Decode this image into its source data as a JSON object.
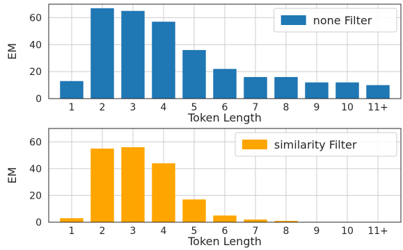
{
  "chart_data": [
    {
      "type": "bar",
      "categories": [
        "1",
        "2",
        "3",
        "4",
        "5",
        "6",
        "7",
        "8",
        "9",
        "10",
        "11+"
      ],
      "series": [
        {
          "name": "none Filter",
          "values": [
            13,
            67,
            65,
            57,
            36,
            22,
            16,
            16,
            12,
            12,
            10
          ]
        }
      ],
      "xlabel": "Token Length",
      "ylabel": "EM",
      "ylim": [
        0,
        70
      ],
      "yticks": [
        0,
        20,
        40,
        60
      ],
      "grid": true,
      "legend": "top-right",
      "color": "#1f77b4"
    },
    {
      "type": "bar",
      "categories": [
        "1",
        "2",
        "3",
        "4",
        "5",
        "6",
        "7",
        "8",
        "9",
        "10",
        "11+"
      ],
      "series": [
        {
          "name": "similarity Filter",
          "values": [
            3,
            55,
            56,
            44,
            17,
            5,
            2,
            1,
            0,
            0,
            0
          ]
        }
      ],
      "xlabel": "Token Length",
      "ylabel": "EM",
      "ylim": [
        0,
        70
      ],
      "yticks": [
        0,
        20,
        40,
        60
      ],
      "grid": true,
      "legend": "top-right",
      "color": "#ffa500"
    }
  ]
}
